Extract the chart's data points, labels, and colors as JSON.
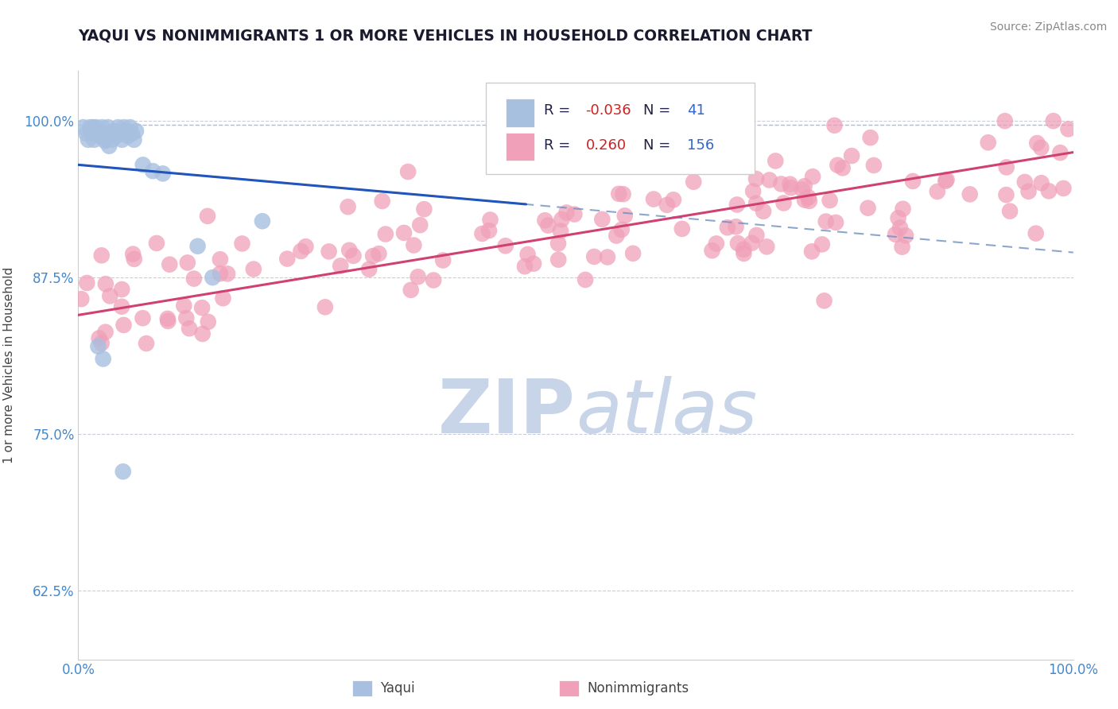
{
  "title": "YAQUI VS NONIMMIGRANTS 1 OR MORE VEHICLES IN HOUSEHOLD CORRELATION CHART",
  "source": "Source: ZipAtlas.com",
  "ylabel": "1 or more Vehicles in Household",
  "xlim": [
    0.0,
    1.0
  ],
  "ylim": [
    0.57,
    1.04
  ],
  "yticks": [
    0.625,
    0.75,
    0.875,
    1.0
  ],
  "ytick_labels": [
    "62.5%",
    "75.0%",
    "87.5%",
    "100.0%"
  ],
  "xtick_labels": [
    "0.0%",
    "100.0%"
  ],
  "legend_R1": "-0.036",
  "legend_N1": "41",
  "legend_R2": "0.260",
  "legend_N2": "156",
  "blue_scatter_color": "#a8c0e0",
  "blue_line_color": "#2255bb",
  "blue_dash_color": "#7090c0",
  "pink_scatter_color": "#f0a0b8",
  "pink_line_color": "#d04070",
  "watermark_color": "#c8d4e8",
  "background_color": "#ffffff",
  "grid_color": "#c0c0d0",
  "title_color": "#1a1a2e",
  "tick_color": "#4488cc",
  "legend_text_color": "#222244",
  "legend_R_color": "#cc2222",
  "legend_N_color": "#3366cc"
}
